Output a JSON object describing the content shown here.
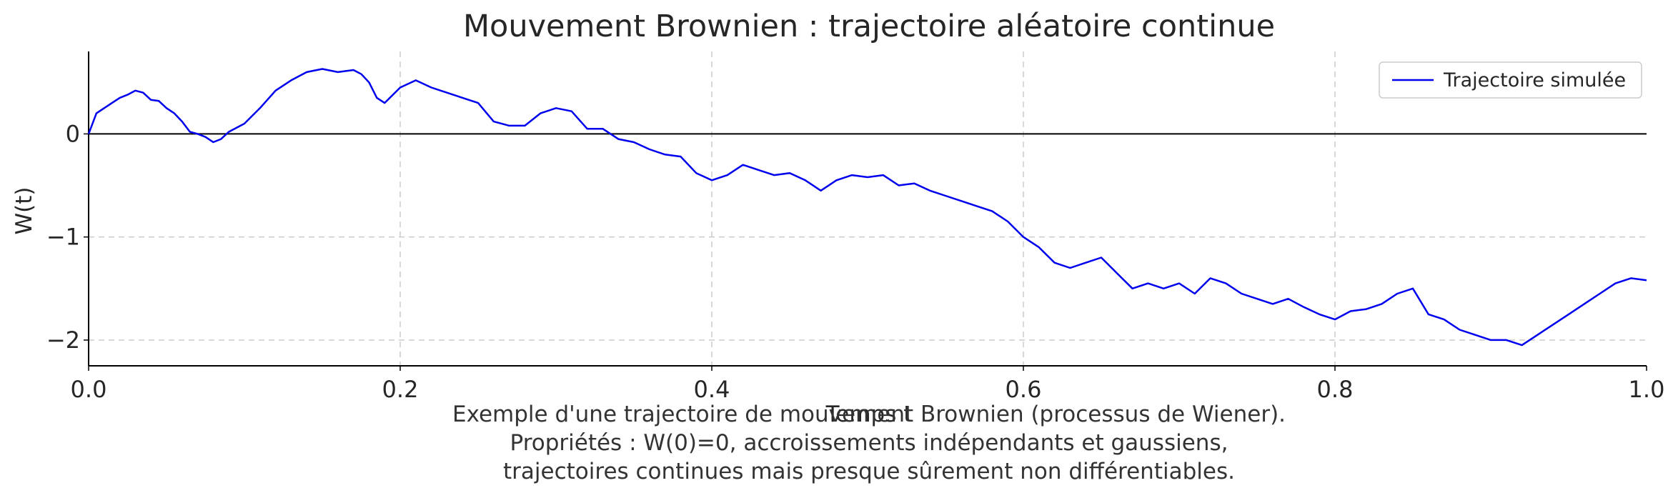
{
  "chart_data": {
    "type": "line",
    "title": "Mouvement Brownien : trajectoire aléatoire continue",
    "xlabel": "Temps t",
    "ylabel": "W(t)",
    "xlim": [
      0.0,
      1.0
    ],
    "ylim": [
      -2.25,
      0.8
    ],
    "x_ticks": [
      0.0,
      0.2,
      0.4,
      0.6,
      0.8,
      1.0
    ],
    "x_tick_labels": [
      "0.0",
      "0.2",
      "0.4",
      "0.6",
      "0.8",
      "1.0"
    ],
    "y_ticks": [
      -2,
      -1,
      0
    ],
    "y_tick_labels": [
      "−2",
      "−1",
      "0"
    ],
    "grid": true,
    "zero_line": true,
    "legend": {
      "position": "top-right"
    },
    "series": [
      {
        "name": "Trajectoire simulée",
        "color": "#0000ee",
        "points": [
          [
            0.0,
            0.0
          ],
          [
            0.005,
            0.2
          ],
          [
            0.01,
            0.25
          ],
          [
            0.015,
            0.3
          ],
          [
            0.02,
            0.35
          ],
          [
            0.025,
            0.38
          ],
          [
            0.03,
            0.42
          ],
          [
            0.035,
            0.4
          ],
          [
            0.04,
            0.33
          ],
          [
            0.045,
            0.32
          ],
          [
            0.05,
            0.25
          ],
          [
            0.055,
            0.2
          ],
          [
            0.06,
            0.12
          ],
          [
            0.065,
            0.02
          ],
          [
            0.07,
            0.0
          ],
          [
            0.075,
            -0.03
          ],
          [
            0.08,
            -0.08
          ],
          [
            0.085,
            -0.05
          ],
          [
            0.09,
            0.02
          ],
          [
            0.1,
            0.1
          ],
          [
            0.11,
            0.25
          ],
          [
            0.12,
            0.42
          ],
          [
            0.13,
            0.52
          ],
          [
            0.14,
            0.6
          ],
          [
            0.15,
            0.63
          ],
          [
            0.16,
            0.6
          ],
          [
            0.17,
            0.62
          ],
          [
            0.175,
            0.58
          ],
          [
            0.18,
            0.5
          ],
          [
            0.185,
            0.35
          ],
          [
            0.19,
            0.3
          ],
          [
            0.2,
            0.45
          ],
          [
            0.21,
            0.52
          ],
          [
            0.22,
            0.45
          ],
          [
            0.23,
            0.4
          ],
          [
            0.24,
            0.35
          ],
          [
            0.25,
            0.3
          ],
          [
            0.26,
            0.12
          ],
          [
            0.27,
            0.08
          ],
          [
            0.28,
            0.08
          ],
          [
            0.29,
            0.2
          ],
          [
            0.3,
            0.25
          ],
          [
            0.31,
            0.22
          ],
          [
            0.32,
            0.05
          ],
          [
            0.33,
            0.05
          ],
          [
            0.34,
            -0.05
          ],
          [
            0.35,
            -0.08
          ],
          [
            0.36,
            -0.15
          ],
          [
            0.37,
            -0.2
          ],
          [
            0.38,
            -0.22
          ],
          [
            0.39,
            -0.38
          ],
          [
            0.4,
            -0.45
          ],
          [
            0.41,
            -0.4
          ],
          [
            0.42,
            -0.3
          ],
          [
            0.43,
            -0.35
          ],
          [
            0.44,
            -0.4
          ],
          [
            0.45,
            -0.38
          ],
          [
            0.46,
            -0.45
          ],
          [
            0.47,
            -0.55
          ],
          [
            0.48,
            -0.45
          ],
          [
            0.49,
            -0.4
          ],
          [
            0.5,
            -0.42
          ],
          [
            0.51,
            -0.4
          ],
          [
            0.52,
            -0.5
          ],
          [
            0.53,
            -0.48
          ],
          [
            0.54,
            -0.55
          ],
          [
            0.55,
            -0.6
          ],
          [
            0.56,
            -0.65
          ],
          [
            0.57,
            -0.7
          ],
          [
            0.58,
            -0.75
          ],
          [
            0.59,
            -0.85
          ],
          [
            0.6,
            -1.0
          ],
          [
            0.61,
            -1.1
          ],
          [
            0.62,
            -1.25
          ],
          [
            0.63,
            -1.3
          ],
          [
            0.64,
            -1.25
          ],
          [
            0.65,
            -1.2
          ],
          [
            0.66,
            -1.35
          ],
          [
            0.67,
            -1.5
          ],
          [
            0.68,
            -1.45
          ],
          [
            0.69,
            -1.5
          ],
          [
            0.7,
            -1.45
          ],
          [
            0.71,
            -1.55
          ],
          [
            0.72,
            -1.4
          ],
          [
            0.73,
            -1.45
          ],
          [
            0.74,
            -1.55
          ],
          [
            0.75,
            -1.6
          ],
          [
            0.76,
            -1.65
          ],
          [
            0.77,
            -1.6
          ],
          [
            0.78,
            -1.68
          ],
          [
            0.79,
            -1.75
          ],
          [
            0.8,
            -1.8
          ],
          [
            0.81,
            -1.72
          ],
          [
            0.82,
            -1.7
          ],
          [
            0.83,
            -1.65
          ],
          [
            0.84,
            -1.55
          ],
          [
            0.85,
            -1.5
          ],
          [
            0.86,
            -1.75
          ],
          [
            0.87,
            -1.8
          ],
          [
            0.88,
            -1.9
          ],
          [
            0.89,
            -1.95
          ],
          [
            0.9,
            -2.0
          ],
          [
            0.91,
            -2.0
          ],
          [
            0.92,
            -2.05
          ],
          [
            0.93,
            -1.95
          ],
          [
            0.94,
            -1.85
          ],
          [
            0.95,
            -1.75
          ],
          [
            0.96,
            -1.65
          ],
          [
            0.97,
            -1.55
          ],
          [
            0.98,
            -1.45
          ],
          [
            0.99,
            -1.4
          ],
          [
            1.0,
            -1.42
          ]
        ]
      }
    ],
    "caption_lines": [
      "Exemple d'une trajectoire de mouvement Brownien (processus de Wiener).",
      "Propriétés : W(0)=0, accroissements indépendants et gaussiens,",
      "trajectoires continues mais presque sûrement non différentiables."
    ]
  }
}
